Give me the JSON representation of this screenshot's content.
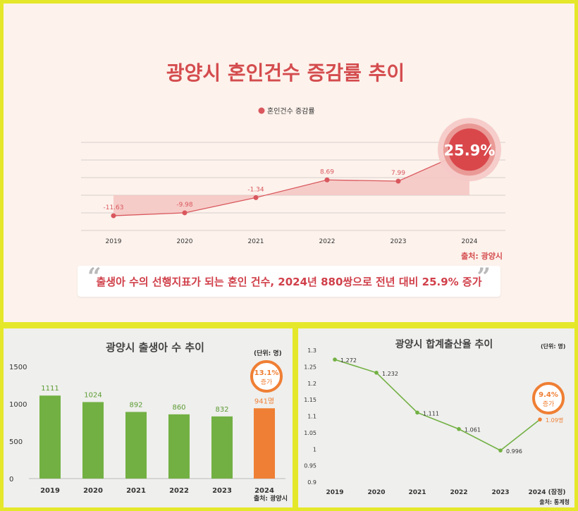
{
  "chart_data": [
    {
      "type": "line",
      "title": "광양시 혼인건수 증감률 추이",
      "legend": "혼인건수 증감률",
      "legend_position": "top-center",
      "x": [
        "2019",
        "2020",
        "2021",
        "2022",
        "2023",
        "2024"
      ],
      "series": [
        {
          "name": "혼인건수 증감률",
          "values": [
            -11.63,
            -9.98,
            -1.34,
            8.69,
            7.99,
            25.9
          ]
        }
      ],
      "value_labels": [
        "-11.63",
        "-9.98",
        "-1.34",
        "8.69",
        "7.99",
        "25.9%"
      ],
      "ylim": [
        -20,
        30
      ],
      "grid": true,
      "source": "출처: 광양시",
      "quote": "출생아 수의 선행지표가 되는 혼인 건수, 2024년 880쌍으로 전년 대비 25.9% 증가",
      "colors": {
        "line": "#d9575d",
        "fill": "#f4c6c2",
        "title": "#d44c4e",
        "text": "#333333",
        "highlight": "#d9474b"
      }
    },
    {
      "type": "bar",
      "title": "광양시 출생아 수 추이",
      "unit": "(단위: 명)",
      "categories": [
        "2019",
        "2020",
        "2021",
        "2022",
        "2023",
        "2024"
      ],
      "series": [
        {
          "name": "출생아 수",
          "values": [
            1111,
            1024,
            892,
            860,
            832,
            941
          ]
        }
      ],
      "value_labels": [
        "1111",
        "1024",
        "892",
        "860",
        "832",
        "941명"
      ],
      "yticks": [
        "0",
        "500",
        "1000",
        "1500"
      ],
      "ylim": [
        0,
        1500
      ],
      "badge": {
        "value": "13.1%",
        "label": "증가"
      },
      "source": "출처: 광양시",
      "colors": {
        "bar": "#72b043",
        "highlight": "#ef7f34",
        "label": "#5b9b32"
      }
    },
    {
      "type": "line",
      "title": "광양시 합계출산율 추이",
      "unit": "(단위: 명)",
      "x": [
        "2019",
        "2020",
        "2021",
        "2022",
        "2023",
        "2024 (잠정)"
      ],
      "series": [
        {
          "name": "합계출산율",
          "values": [
            1.272,
            1.232,
            1.111,
            1.061,
            0.996,
            1.09
          ]
        }
      ],
      "value_labels": [
        "1.272",
        "1.232",
        "1.111",
        "1.061",
        "0.996",
        "1.09명"
      ],
      "yticks": [
        "0.9",
        "0.95",
        "1",
        "1.05",
        "1.1",
        "1.15",
        "1.2",
        "1.25",
        "1.3"
      ],
      "ylim": [
        0.9,
        1.3
      ],
      "badge": {
        "value": "9.4%",
        "label": "증가"
      },
      "source": "출처: 통계청",
      "colors": {
        "line": "#72b043",
        "highlight": "#ef7f34"
      }
    }
  ]
}
